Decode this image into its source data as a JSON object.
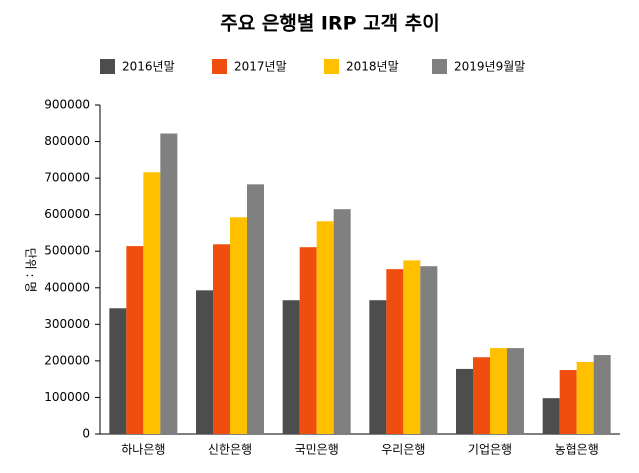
{
  "chart_data": {
    "type": "bar",
    "title": "주요 은행별 IRP 고객 추이",
    "y_label": "단위 : 명",
    "categories": [
      "하나은행",
      "신한은행",
      "국민은행",
      "우리은행",
      "기업은행",
      "농협은행"
    ],
    "series": [
      {
        "name": "2016년말",
        "color": "#4d4d4d",
        "values": [
          344000,
          393000,
          366000,
          366000,
          178000,
          98000
        ]
      },
      {
        "name": "2017년말",
        "color": "#f04e0e",
        "values": [
          514000,
          519000,
          511000,
          451000,
          210000,
          175000
        ]
      },
      {
        "name": "2018년말",
        "color": "#ffc000",
        "values": [
          716000,
          593000,
          582000,
          475000,
          235000,
          197000
        ]
      },
      {
        "name": "2019년9월말",
        "color": "#808080",
        "values": [
          822000,
          683000,
          615000,
          459000,
          235000,
          216000
        ]
      }
    ],
    "ylim": [
      0,
      900000
    ],
    "yticks": [
      0,
      100000,
      200000,
      300000,
      400000,
      500000,
      600000,
      700000,
      800000,
      900000
    ],
    "grid": false
  }
}
